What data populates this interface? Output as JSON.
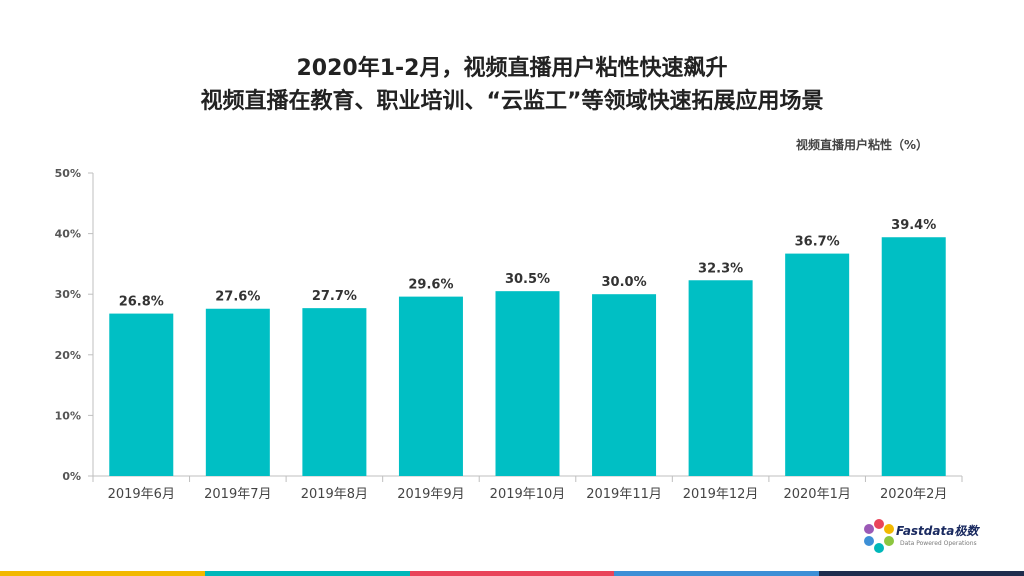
{
  "header": {
    "line1": "2020年1-2月，视频直播用户粘性快速飙升",
    "line2": "视频直播在教育、职业培训、“云监工”等领域快速拓展应用场景"
  },
  "chart_data": {
    "type": "bar",
    "categories": [
      "2019年6月",
      "2019年7月",
      "2019年8月",
      "2019年9月",
      "2019年10月",
      "2019年11月",
      "2019年12月",
      "2020年1月",
      "2020年2月"
    ],
    "values": [
      26.8,
      27.6,
      27.7,
      29.6,
      30.5,
      30.0,
      32.3,
      36.7,
      39.4
    ],
    "value_labels": [
      "26.8%",
      "27.6%",
      "27.7%",
      "29.6%",
      "30.5%",
      "30.0%",
      "32.3%",
      "36.7%",
      "39.4%"
    ],
    "y_ticks": [
      0,
      10,
      20,
      30,
      40,
      50
    ],
    "y_tick_labels": [
      "0%",
      "10%",
      "20%",
      "30%",
      "40%",
      "50%"
    ],
    "ylim": [
      0,
      50
    ],
    "series_label": "视频直播用户粘性（%）",
    "bar_color": "#00bfc4",
    "grid": false,
    "legend_position": "top-right"
  },
  "brand": {
    "name": "Fastdata极数",
    "tagline": "Data Powered Operations"
  },
  "footer_colors": [
    "#f2b800",
    "#00b7b9",
    "#e9445a",
    "#3d8fd6",
    "#1f2d4d"
  ]
}
